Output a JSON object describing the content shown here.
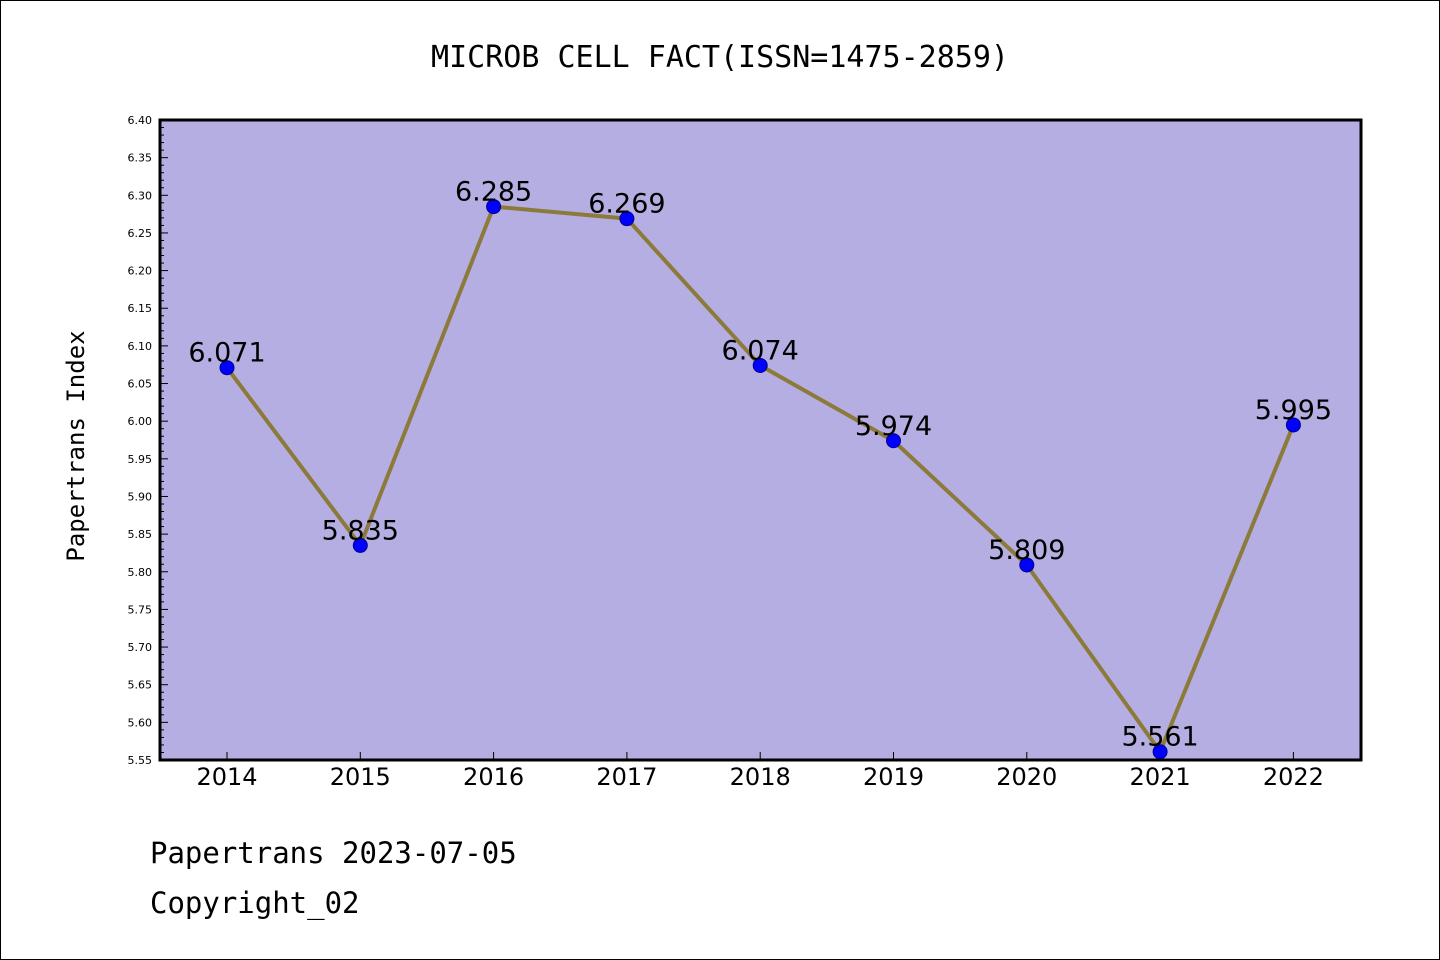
{
  "chart_data": {
    "type": "line",
    "title": "MICROB CELL FACT(ISSN=1475-2859)",
    "xlabel": "",
    "ylabel": "Papertrans Index",
    "categories": [
      "2014",
      "2015",
      "2016",
      "2017",
      "2018",
      "2019",
      "2020",
      "2021",
      "2022"
    ],
    "values": [
      6.071,
      5.835,
      6.285,
      6.269,
      6.074,
      5.974,
      5.809,
      5.561,
      5.995
    ],
    "data_labels": [
      "6.071",
      "5.835",
      "6.285",
      "6.269",
      "6.074",
      "5.974",
      "5.809",
      "5.561",
      "5.995"
    ],
    "ylim": [
      5.55,
      6.4
    ],
    "yticks": [
      "5.55",
      "5.60",
      "5.65",
      "5.70",
      "5.75",
      "5.80",
      "5.85",
      "5.90",
      "5.95",
      "6.00",
      "6.05",
      "6.10",
      "6.15",
      "6.20",
      "6.25",
      "6.30",
      "6.35",
      "6.40"
    ],
    "grid": false,
    "legend": "none",
    "colors": {
      "plot_background": "#b5aee2",
      "line": "#8c7a3a",
      "marker": "#0000ff",
      "axis": "#000000"
    }
  },
  "footer": {
    "line1": "Papertrans 2023-07-05",
    "line2": "Copyright_02"
  }
}
